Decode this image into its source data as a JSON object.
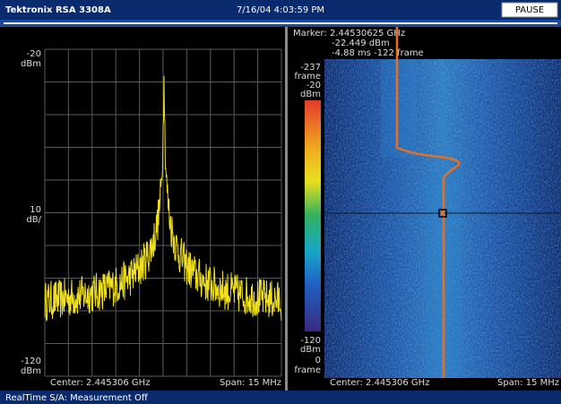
{
  "header": {
    "product": "Tektronix RSA 3308A",
    "datetime": "7/16/04 4:03:59 PM",
    "button": "PAUSE"
  },
  "spectrum": {
    "ref_level": "-20",
    "ref_unit": "dBm",
    "scale": "10",
    "scale_unit": "dB/",
    "bottom_level": "-120",
    "bottom_unit": "dBm",
    "center": "Center: 2.445306 GHz",
    "span": "Span: 15 MHz"
  },
  "spectrogram": {
    "marker": [
      "Marker: 2.44530625 GHz",
      "-22.449 dBm",
      "-4.88 ms  -122 frame"
    ],
    "colorbar_top": [
      "-237",
      "frame",
      "-20",
      "dBm"
    ],
    "colorbar_bottom": [
      "-120",
      "dBm",
      "0",
      "frame"
    ],
    "center": "Center: 2.445306 GHz",
    "span": "Span: 15 MHz"
  },
  "status": "RealTime S/A: Measurement Off"
}
